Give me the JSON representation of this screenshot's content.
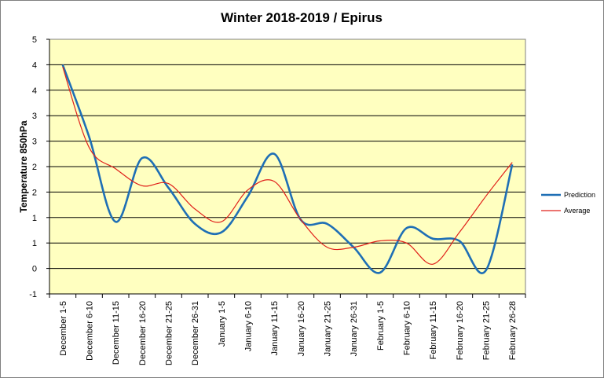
{
  "chart_data": {
    "type": "line",
    "title": "Winter 2018-2019 / Epirus",
    "xlabel": "",
    "ylabel": "Temperature 850hPa",
    "categories": [
      "December 1-5",
      "December 6-10",
      "December 11-15",
      "December 16-20",
      "December 21-25",
      "December 26-31",
      "January 1-5",
      "January 6-10",
      "January 11-15",
      "January 16-20",
      "January 21-25",
      "January 26-31",
      "February 1-5",
      "February 6-10",
      "February 11-15",
      "February 16-20",
      "February 21-25",
      "February 26-28"
    ],
    "ylim": [
      -1,
      5
    ],
    "yticks": [
      "-1",
      "0",
      "1",
      "1",
      "2",
      "2",
      "3",
      "3",
      "4",
      "4",
      "5"
    ],
    "grid": true,
    "legend_position": "right",
    "series": [
      {
        "name": "Prediction",
        "color": "#1f6fb5",
        "values": [
          4.4,
          2.7,
          0.7,
          2.2,
          1.5,
          0.65,
          0.45,
          1.3,
          2.3,
          0.75,
          0.65,
          0.1,
          -0.5,
          0.55,
          0.3,
          0.25,
          -0.45,
          2.05
        ]
      },
      {
        "name": "Average",
        "color": "#e0201a",
        "values": [
          4.35,
          2.45,
          1.95,
          1.55,
          1.6,
          1.0,
          0.7,
          1.45,
          1.65,
          0.75,
          0.1,
          0.1,
          0.25,
          0.2,
          -0.3,
          0.45,
          1.3,
          2.1
        ]
      }
    ]
  }
}
